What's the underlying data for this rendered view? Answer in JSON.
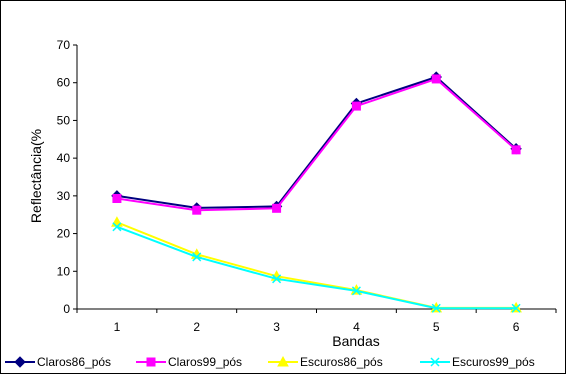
{
  "chart_data": {
    "type": "line",
    "xlabel": "Bandas",
    "ylabel": "Reflectância(%",
    "categories": [
      "1",
      "2",
      "3",
      "4",
      "5",
      "6"
    ],
    "ylim": [
      0,
      70
    ],
    "yticks": [
      0,
      10,
      20,
      30,
      40,
      50,
      60,
      70
    ],
    "grid": false,
    "legend_position": "bottom",
    "series": [
      {
        "name": "Claros86_pós",
        "color": "#000080",
        "marker": "diamond",
        "values": [
          30,
          26.8,
          27.2,
          54.5,
          61.5,
          42.5
        ]
      },
      {
        "name": "Claros99_pós",
        "color": "#ff00ff",
        "marker": "square",
        "values": [
          29.3,
          26.2,
          26.7,
          53.8,
          61,
          42.2
        ]
      },
      {
        "name": "Escuros86_pós",
        "color": "#ffff00",
        "marker": "triangle",
        "values": [
          23,
          14.5,
          8.7,
          5,
          0.3,
          0.3
        ]
      },
      {
        "name": "Escuros99_pós",
        "color": "#00ffff",
        "marker": "x",
        "values": [
          21.8,
          13.8,
          8,
          4.8,
          0.2,
          0.2
        ]
      }
    ]
  }
}
